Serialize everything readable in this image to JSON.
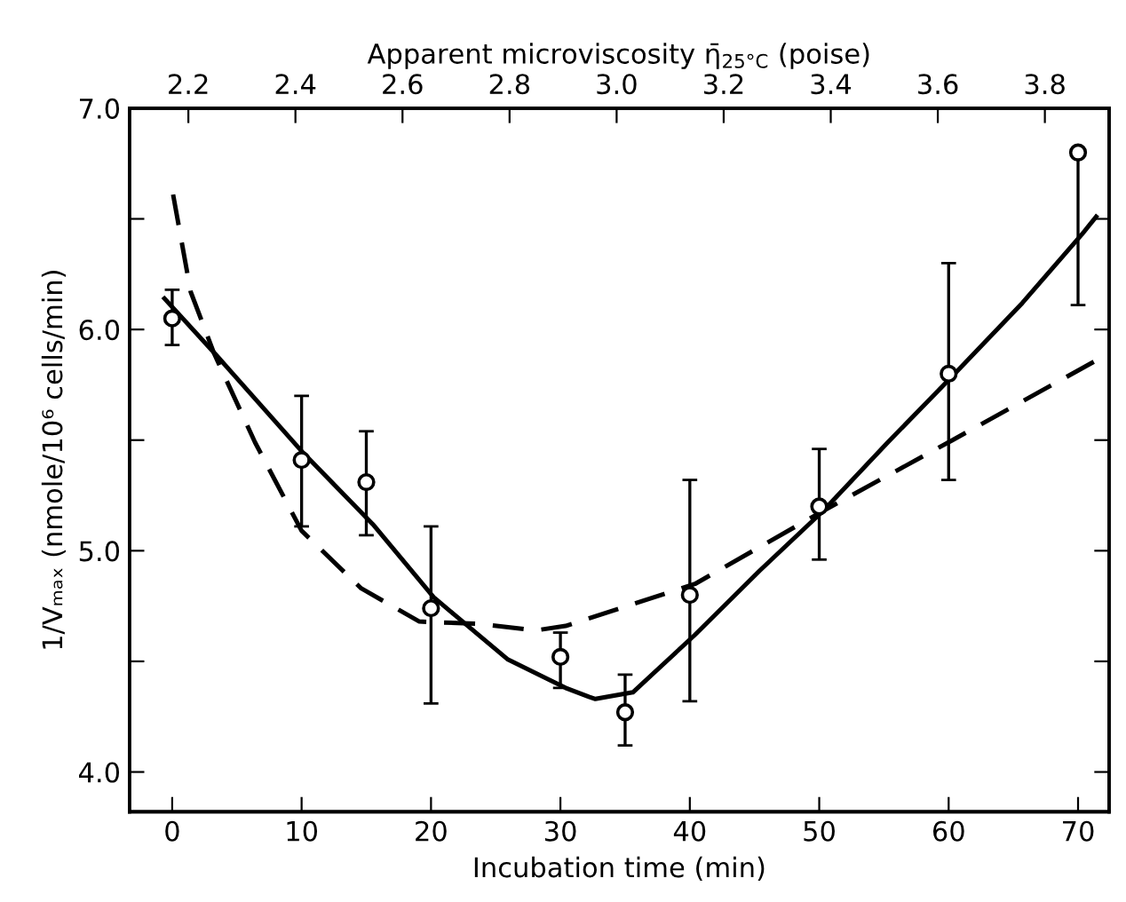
{
  "chart_data": {
    "type": "scatter",
    "xlabel": "Incubation time (min)",
    "ylabel": "1/Vₘₐₓ (nmole/10⁶ cells/min)",
    "x2label": "Apparent microviscosity η̄$_{25°C}$ (poise)",
    "xlim": [
      -3.3,
      72.4
    ],
    "xticks": [
      0,
      10,
      20,
      30,
      40,
      50,
      60,
      70
    ],
    "x2lim": [
      2.09,
      3.92
    ],
    "x2ticks": [
      2.2,
      2.4,
      2.6,
      2.8,
      {
        "value": 3,
        "label": "3.0"
      },
      3.2,
      3.4,
      3.6,
      3.8
    ],
    "ylim": [
      3.82,
      7.0
    ],
    "yticks": [
      {
        "value": 4,
        "label": "4.0"
      },
      {
        "value": 4.5,
        "label": null
      },
      {
        "value": 5,
        "label": "5.0"
      },
      {
        "value": 5.5,
        "label": null
      },
      {
        "value": 6,
        "label": "6.0"
      },
      {
        "value": 6.5,
        "label": null
      },
      {
        "value": 7,
        "label": "7.0"
      }
    ],
    "grid": false,
    "legend": false,
    "series": [
      {
        "color": "#000000",
        "marker": "circle",
        "x": [
          0,
          10,
          15,
          20,
          30,
          35,
          40,
          50,
          60,
          70
        ],
        "values": [
          6.05,
          5.41,
          5.31,
          4.74,
          4.52,
          4.27,
          4.8,
          5.2,
          5.8,
          6.8
        ],
        "errors": [
          [
            5.93,
            6.18
          ],
          [
            5.11,
            5.7
          ],
          [
            5.07,
            5.54
          ],
          [
            4.31,
            5.11
          ],
          [
            4.38,
            4.63
          ],
          [
            4.12,
            4.44
          ],
          [
            4.32,
            5.32
          ],
          [
            4.96,
            5.46
          ],
          [
            5.32,
            6.3
          ],
          [
            6.11,
            6.8
          ]
        ]
      },
      {
        "type": "line",
        "color": "#000000",
        "line_style": "solid",
        "x": [
          -0.6,
          3.47,
          10.0,
          15.5,
          20.2,
          25.9,
          30.4,
          32.2,
          32.7,
          35.6,
          40.4,
          45.4,
          50.3,
          55.3,
          60.3,
          65.7,
          70.3,
          71.4
        ],
        "values": [
          6.14,
          5.88,
          5.45,
          5.12,
          4.79,
          4.51,
          4.38,
          4.34,
          4.33,
          4.36,
          4.62,
          4.91,
          5.18,
          5.49,
          5.79,
          6.12,
          6.43,
          6.51
        ]
      },
      {
        "type": "line",
        "color": "#000000",
        "line_style": "dashed",
        "x": [
          0.07,
          1.43,
          3.25,
          6.4,
          10.0,
          14.6,
          19.1,
          23.6,
          28.1,
          30.4,
          40.4,
          50.3,
          60.3,
          71.4
        ],
        "values": [
          6.61,
          6.17,
          5.89,
          5.49,
          5.09,
          4.83,
          4.68,
          4.67,
          4.64,
          4.66,
          4.85,
          5.18,
          5.5,
          5.86
        ]
      }
    ]
  }
}
